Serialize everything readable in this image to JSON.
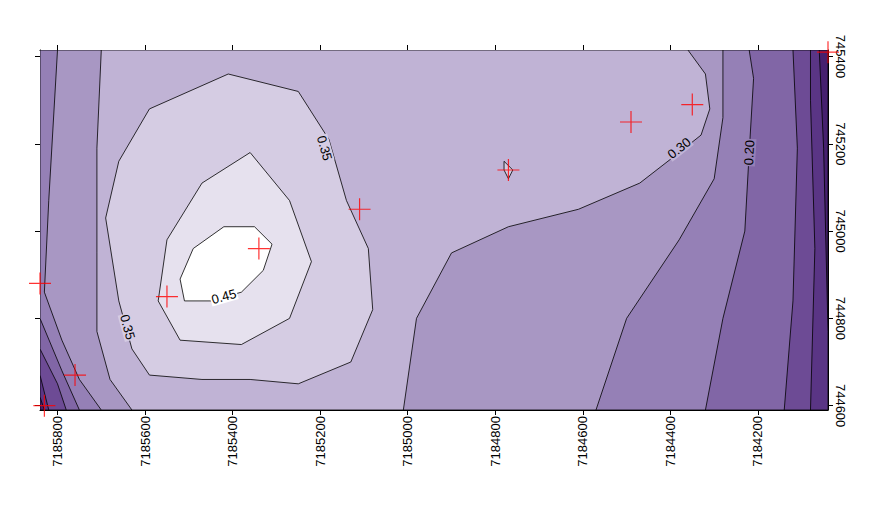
{
  "chart_data": {
    "type": "contour",
    "xlim": [
      7185840,
      7184040
    ],
    "ylim": [
      744590,
      745415
    ],
    "xticks": [
      7185800,
      7185600,
      7185400,
      7185200,
      7185000,
      7184800,
      7184600,
      7184400,
      7184200
    ],
    "yticks": [
      744600,
      744800,
      745000,
      745200,
      745400
    ],
    "grid": false,
    "contours": [
      {
        "level": 0,
        "color": "#46206f",
        "paths": [
          [
            [
              7185840,
              745415
            ],
            [
              7184040,
              745415
            ],
            [
              7184040,
              744590
            ],
            [
              7185840,
              744590
            ]
          ]
        ]
      },
      {
        "level": 0.05,
        "color": "#5a3585",
        "paths": [
          [
            [
              7185840,
              745415
            ],
            [
              7184060,
              745415
            ],
            [
              7184050,
              745190
            ],
            [
              7184040,
              744770
            ],
            [
              7184040,
              744590
            ],
            [
              7185830,
              744590
            ],
            [
              7185840,
              744620
            ]
          ]
        ]
      },
      {
        "level": 0.1,
        "color": "#6d4b95",
        "paths": [
          [
            [
              7185840,
              745415
            ],
            [
              7184080,
              745415
            ],
            [
              7184080,
              745300
            ],
            [
              7184070,
              744960
            ],
            [
              7184080,
              744590
            ],
            [
              7185820,
              744590
            ],
            [
              7185840,
              744670
            ]
          ]
        ]
      },
      {
        "level": 0.15,
        "color": "#8166a6",
        "paths": [
          [
            [
              7185840,
              745415
            ],
            [
              7184120,
              745415
            ],
            [
              7184110,
              745190
            ],
            [
              7184120,
              744840
            ],
            [
              7184140,
              744590
            ],
            [
              7185780,
              744590
            ],
            [
              7185800,
              744650
            ],
            [
              7185840,
              744730
            ]
          ]
        ]
      },
      {
        "level": 0.2,
        "color": "#9580b6",
        "paths": [
          [
            [
              7185840,
              745415
            ],
            [
              7184220,
              745415
            ],
            [
              7184210,
              745350
            ],
            [
              7184220,
              745180
            ],
            [
              7184230,
              745000
            ],
            [
              7184280,
              744800
            ],
            [
              7184320,
              744590
            ],
            [
              7185750,
              744590
            ],
            [
              7185790,
              744680
            ],
            [
              7185840,
              744800
            ]
          ]
        ]
      },
      {
        "level": 0.25,
        "color": "#a897c3",
        "paths": [
          [
            [
              7185800,
              745415
            ],
            [
              7184280,
              745415
            ],
            [
              7184280,
              745260
            ],
            [
              7184300,
              745120
            ],
            [
              7184380,
              744980
            ],
            [
              7184500,
              744800
            ],
            [
              7184570,
              744590
            ],
            [
              7185700,
              744590
            ],
            [
              7185750,
              744660
            ],
            [
              7185790,
              744750
            ],
            [
              7185830,
              744860
            ],
            [
              7185820,
              745070
            ]
          ]
        ]
      },
      {
        "level": 0.3,
        "color": "#c0b3d5",
        "paths": [
          [
            [
              7185700,
              745415
            ],
            [
              7184360,
              745415
            ],
            [
              7184320,
              745360
            ],
            [
              7184310,
              745280
            ],
            [
              7184330,
              745220
            ],
            [
              7184380,
              745180
            ],
            [
              7184470,
              745110
            ],
            [
              7184610,
              745050
            ],
            [
              7184770,
              745010
            ],
            [
              7184900,
              744950
            ],
            [
              7184980,
              744800
            ],
            [
              7185010,
              744590
            ],
            [
              7185630,
              744590
            ],
            [
              7185680,
              744660
            ],
            [
              7185710,
              744770
            ],
            [
              7185710,
              744950
            ],
            [
              7185710,
              745190
            ]
          ]
        ]
      },
      {
        "level": 0.35,
        "color": "#d5cce3",
        "paths": [
          [
            [
              7185590,
              745280
            ],
            [
              7185410,
              745360
            ],
            [
              7185250,
              745320
            ],
            [
              7185180,
              745210
            ],
            [
              7185140,
              745070
            ],
            [
              7185090,
              744960
            ],
            [
              7185080,
              744820
            ],
            [
              7185130,
              744700
            ],
            [
              7185250,
              744650
            ],
            [
              7185360,
              744660
            ],
            [
              7185470,
              744660
            ],
            [
              7185590,
              744670
            ],
            [
              7185630,
              744730
            ],
            [
              7185660,
              744840
            ],
            [
              7185690,
              745030
            ],
            [
              7185660,
              745160
            ]
          ],
          [
            [
              7184780,
              745160
            ],
            [
              7184760,
              745140
            ],
            [
              7184770,
              745120
            ],
            [
              7184780,
              745140
            ]
          ]
        ]
      },
      {
        "level": 0.4,
        "color": "#e6e1ee",
        "paths": [
          [
            [
              7185470,
              745110
            ],
            [
              7185360,
              745180
            ],
            [
              7185270,
              745070
            ],
            [
              7185220,
              744930
            ],
            [
              7185270,
              744800
            ],
            [
              7185380,
              744740
            ],
            [
              7185520,
              744750
            ],
            [
              7185570,
              744840
            ],
            [
              7185550,
              744980
            ]
          ]
        ]
      },
      {
        "level": 0.45,
        "color": "#ffffff",
        "paths": [
          [
            [
              7185520,
              744890
            ],
            [
              7185490,
              744960
            ],
            [
              7185420,
              745010
            ],
            [
              7185350,
              745010
            ],
            [
              7185310,
              744970
            ],
            [
              7185330,
              744910
            ],
            [
              7185380,
              744860
            ],
            [
              7185450,
              744840
            ],
            [
              7185510,
              744840
            ]
          ]
        ]
      }
    ],
    "contour_labels": [
      {
        "text": "0.45",
        "x": 7185420,
        "y": 744850
      },
      {
        "text": "0.35",
        "x": 7185190,
        "y": 745190
      },
      {
        "text": "0.35",
        "x": 7185640,
        "y": 744780
      },
      {
        "text": "0.30",
        "x": 7184380,
        "y": 745190
      },
      {
        "text": "0.20",
        "x": 7184220,
        "y": 745180
      }
    ],
    "points": {
      "color": "#ff0000",
      "marker": "cross",
      "x": [
        7185840,
        7185760,
        7185830,
        7185550,
        7185340,
        7185110,
        7184770,
        7184490,
        7184350,
        7184040
      ],
      "y": [
        744880,
        744670,
        744600,
        744850,
        744960,
        745050,
        745140,
        745250,
        745290,
        745410
      ]
    }
  }
}
